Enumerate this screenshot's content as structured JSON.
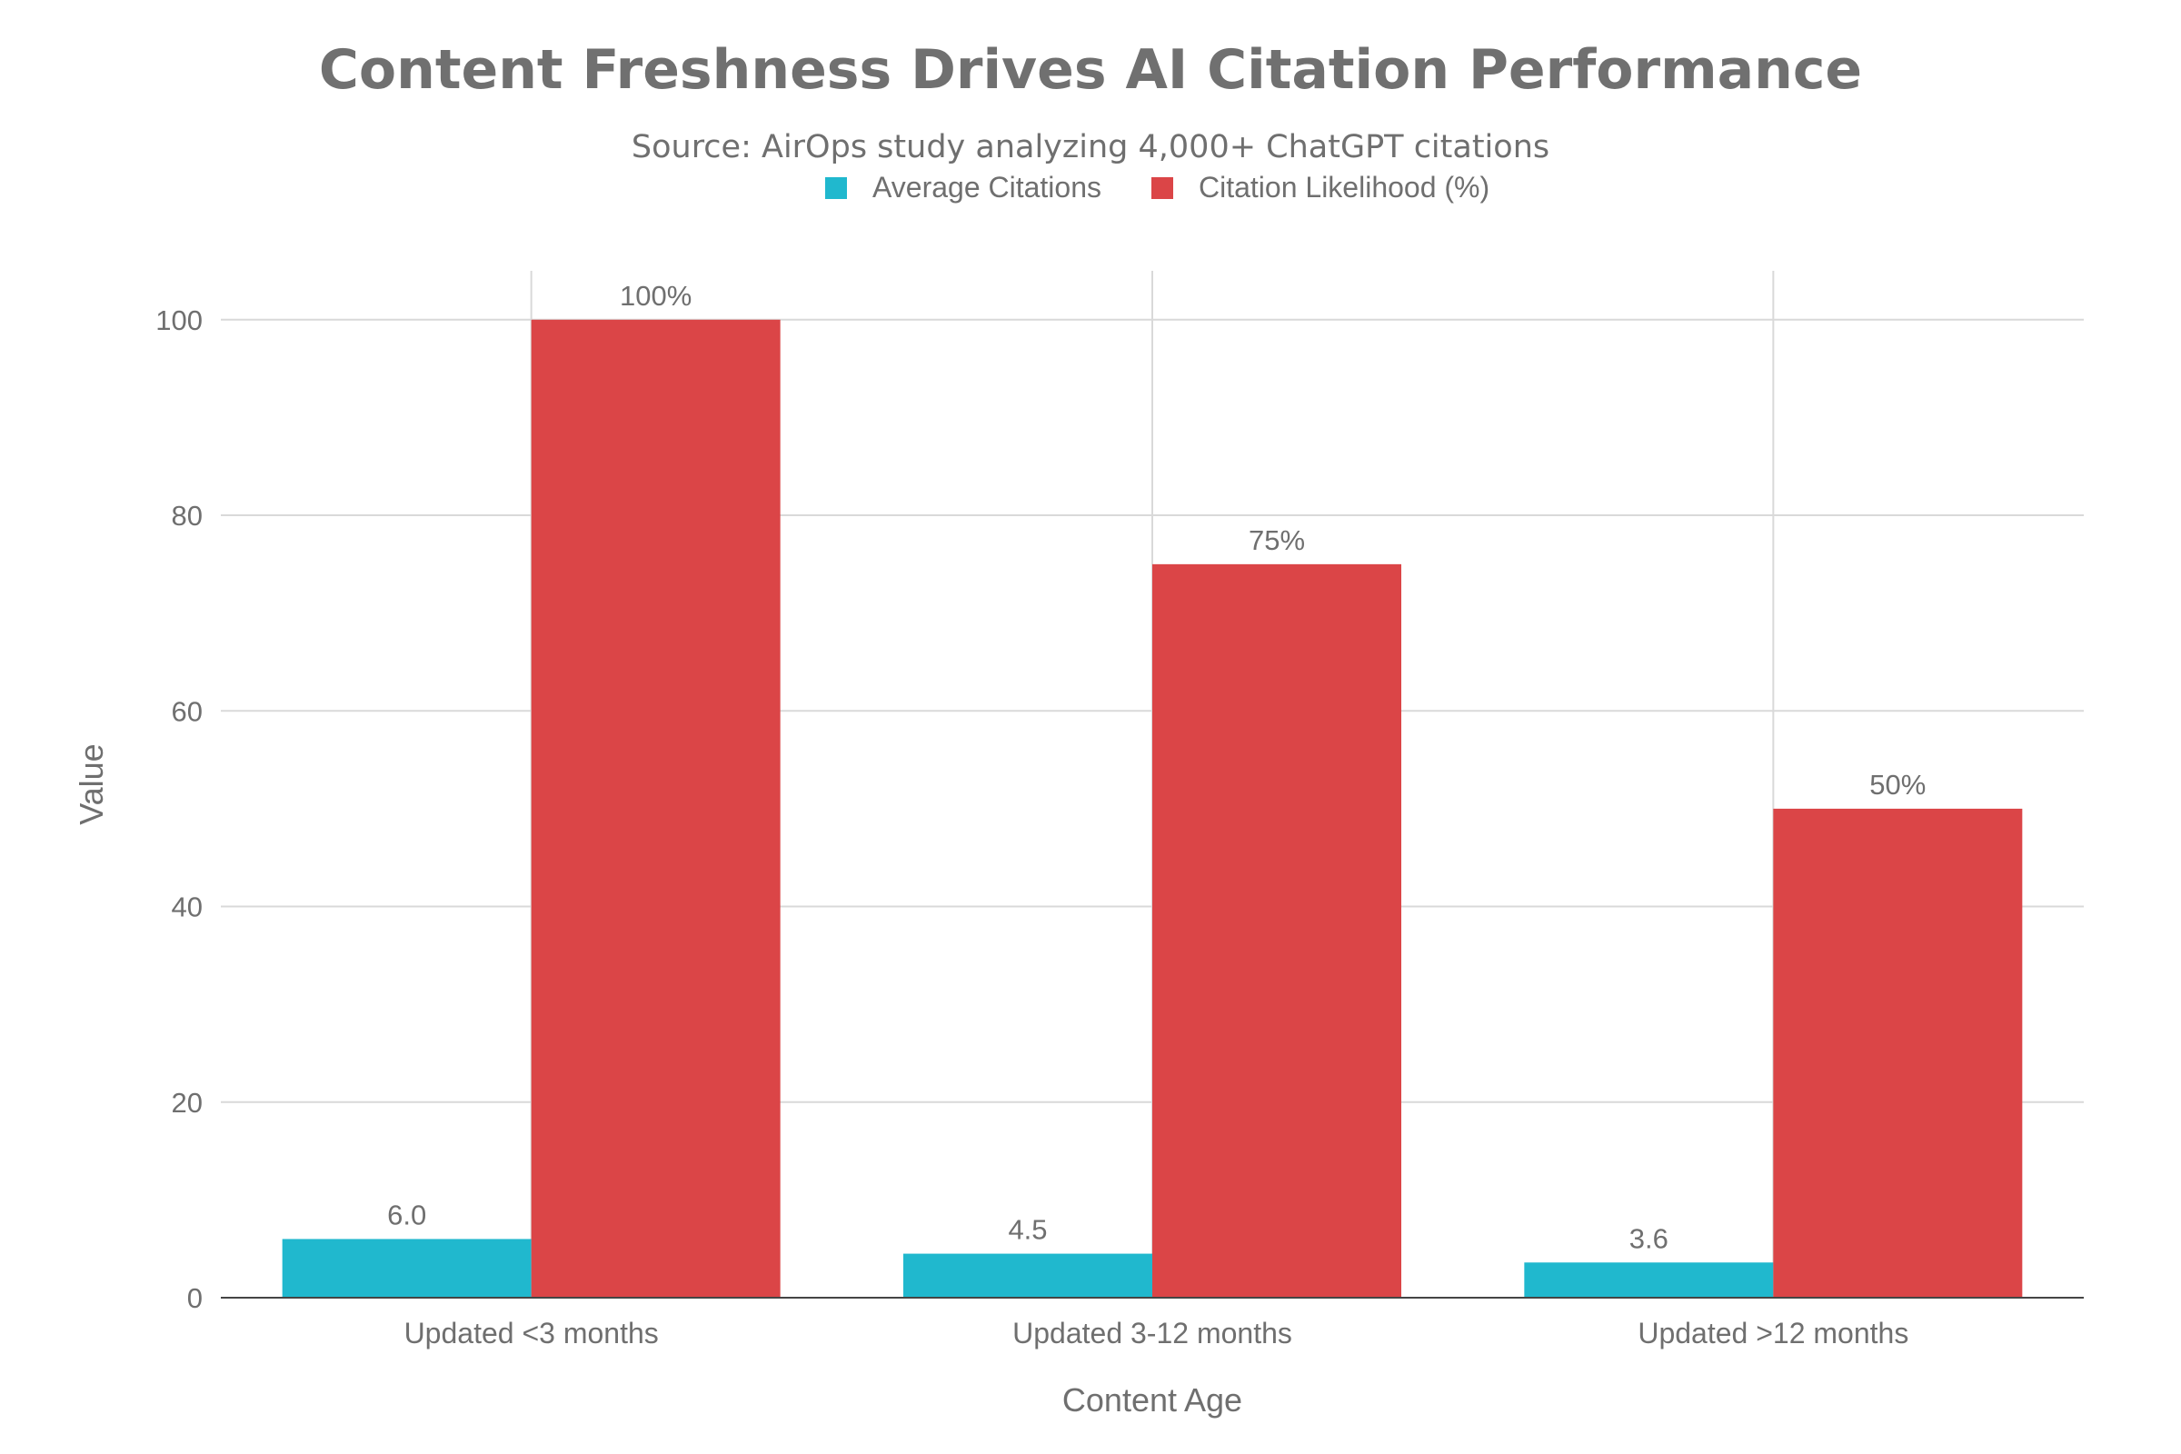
{
  "chart_data": {
    "type": "bar",
    "title": "Content Freshness Drives AI Citation Performance",
    "subtitle": "Source: AirOps study analyzing 4,000+ ChatGPT citations",
    "xlabel": "Content Age",
    "ylabel": "Value",
    "categories": [
      "Updated <3 months",
      "Updated 3-12 months",
      "Updated >12 months"
    ],
    "series": [
      {
        "name": "Average Citations",
        "color": "#20b8ce",
        "values": [
          6.0,
          4.5,
          3.6
        ],
        "labels": [
          "6.0",
          "4.5",
          "3.6"
        ]
      },
      {
        "name": "Citation Likelihood (%)",
        "color": "#db4547",
        "values": [
          100,
          75,
          50
        ],
        "labels": [
          "100%",
          "75%",
          "50%"
        ]
      }
    ],
    "ylim": [
      0,
      105
    ],
    "yticks": [
      0,
      20,
      40,
      60,
      80,
      100
    ],
    "grid": true,
    "legend_position": "top-center"
  }
}
